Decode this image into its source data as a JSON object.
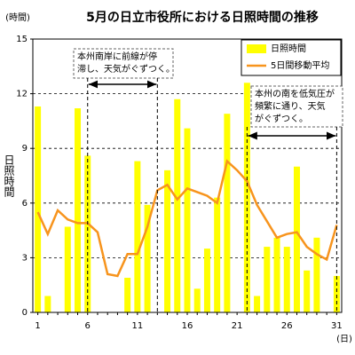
{
  "chart_data": {
    "type": "bar-line",
    "title": "5月の日立市役所における日照時間の推移",
    "y_unit": "(時間)",
    "y_label": "日照時間",
    "x_unit": "(日)",
    "categories": [
      1,
      null,
      null,
      null,
      null,
      6,
      null,
      null,
      null,
      null,
      11,
      null,
      null,
      null,
      null,
      16,
      null,
      null,
      null,
      null,
      21,
      null,
      null,
      null,
      null,
      26,
      null,
      null,
      null,
      null,
      31
    ],
    "series": [
      {
        "name": "日照時間",
        "kind": "bar",
        "color": "#ffff00",
        "values": [
          11.3,
          0.9,
          0,
          4.7,
          11.2,
          8.6,
          0,
          0,
          0,
          1.9,
          8.3,
          5.9,
          0,
          7.8,
          11.7,
          10.1,
          1.3,
          3.5,
          6.3,
          10.9,
          0,
          12.6,
          0.9,
          3.6,
          4.1,
          3.6,
          8.0,
          2.3,
          4.1,
          0,
          2.0
        ]
      },
      {
        "name": "5日間移動平均",
        "kind": "line",
        "color": "#f7941d",
        "values": [
          5.5,
          4.3,
          5.6,
          5.1,
          4.9,
          4.9,
          4.4,
          2.1,
          2.0,
          3.2,
          3.2,
          4.7,
          6.7,
          7.0,
          6.2,
          6.8,
          6.6,
          6.4,
          6.0,
          8.3,
          7.8,
          7.2,
          5.9,
          5.0,
          4.1,
          4.3,
          4.4,
          3.6,
          3.2,
          2.9,
          4.8
        ]
      }
    ],
    "annotations": [
      {
        "lines": [
          "本州南岸に前線が停",
          "滞し、天気がぐずつく。"
        ]
      },
      {
        "lines": [
          "本州の南を低気圧が",
          "頻繁に通り、天気",
          "がぐずつく。"
        ]
      }
    ],
    "ylim": [
      0,
      15
    ],
    "yticks": [
      0,
      3,
      6,
      9,
      12,
      15
    ],
    "grid": true
  }
}
